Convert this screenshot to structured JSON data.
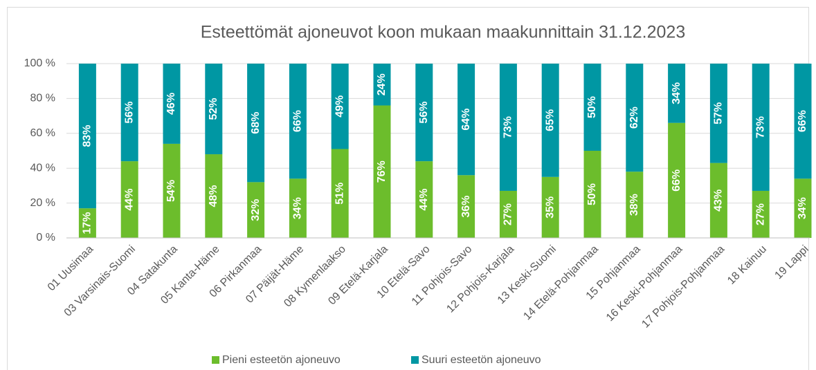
{
  "chart_data": {
    "type": "stacked_bar",
    "title": "Esteettömät ajoneuvot koon mukaan maakunnittain 31.12.2023",
    "categories": [
      "01 Uusimaa",
      "03 Varsinais-Suomi",
      "04 Satakunta",
      "05 Kanta-Häme",
      "06 Pirkanmaa",
      "07 Päijät-Häme",
      "08 Kymenlaakso",
      "09 Etelä-Karjala",
      "10 Etelä-Savo",
      "11 Pohjois-Savo",
      "12 Pohjois-Karjala",
      "13 Keski-Suomi",
      "14 Etelä-Pohjanmaa",
      "15 Pohjanmaa",
      "16 Keski-Pohjanmaa",
      "17 Pohjois-Pohjanmaa",
      "18 Kainuu",
      "19 Lappi"
    ],
    "series": [
      {
        "name": "Pieni esteetön ajoneuvo",
        "color": "#6cbd2c",
        "values": [
          17,
          44,
          54,
          48,
          32,
          34,
          51,
          76,
          44,
          36,
          27,
          35,
          50,
          38,
          66,
          43,
          27,
          34
        ],
        "value_labels": [
          "17%",
          "44%",
          "54%",
          "48%",
          "32%",
          "34%",
          "51%",
          "76%",
          "44%",
          "36%",
          "27%",
          "35%",
          "50%",
          "38%",
          "66%",
          "43%",
          "27%",
          "34%"
        ]
      },
      {
        "name": "Suuri esteetön ajoneuvo",
        "color": "#0097a3",
        "values": [
          83,
          56,
          46,
          52,
          68,
          66,
          49,
          24,
          56,
          64,
          73,
          65,
          50,
          62,
          34,
          57,
          73,
          66
        ],
        "value_labels": [
          "83%",
          "56%",
          "46%",
          "52%",
          "68%",
          "66%",
          "49%",
          "24%",
          "56%",
          "64%",
          "73%",
          "65%",
          "50%",
          "62%",
          "34%",
          "57%",
          "73%",
          "66%"
        ]
      }
    ],
    "ylim": [
      0,
      100
    ],
    "yticks": [
      {
        "value": 0,
        "label": "0 %"
      },
      {
        "value": 20,
        "label": "20 %"
      },
      {
        "value": 40,
        "label": "40 %"
      },
      {
        "value": 60,
        "label": "60 %"
      },
      {
        "value": 80,
        "label": "80 %"
      },
      {
        "value": 100,
        "label": "100 %"
      }
    ],
    "grid": true,
    "legend": "bottom"
  }
}
